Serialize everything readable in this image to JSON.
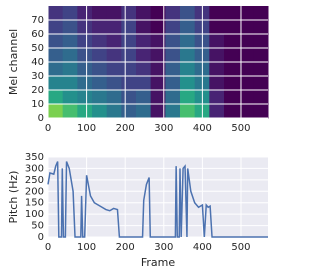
{
  "chart_data": [
    {
      "type": "heatmap",
      "ylabel": "Mel channel",
      "colormap": "viridis",
      "grid": true,
      "xlim": [
        0,
        570
      ],
      "ylim": [
        0,
        80
      ],
      "xticks": [
        0,
        100,
        200,
        300,
        400,
        500
      ],
      "yticks": [
        0,
        10,
        20,
        30,
        40,
        50,
        60,
        70
      ],
      "xbins": [
        0,
        38,
        76,
        114,
        152,
        190,
        228,
        266,
        304,
        342,
        380,
        418,
        456,
        494,
        532,
        570
      ],
      "ybins": [
        0,
        10,
        20,
        30,
        40,
        50,
        60,
        70,
        80
      ],
      "z": [
        [
          0.8,
          0.7,
          0.6,
          0.5,
          0.4,
          0.3,
          0.35,
          0.05,
          0.4,
          0.7,
          0.6,
          0.1,
          0,
          0,
          0
        ],
        [
          0.6,
          0.5,
          0.45,
          0.4,
          0.35,
          0.25,
          0.3,
          0.05,
          0.35,
          0.6,
          0.5,
          0.1,
          0,
          0,
          0
        ],
        [
          0.45,
          0.45,
          0.35,
          0.3,
          0.25,
          0.2,
          0.2,
          0.05,
          0.3,
          0.5,
          0.4,
          0.05,
          0,
          0,
          0
        ],
        [
          0.35,
          0.4,
          0.3,
          0.25,
          0.2,
          0.2,
          0.15,
          0.05,
          0.3,
          0.45,
          0.35,
          0.05,
          0,
          0,
          0
        ],
        [
          0.3,
          0.35,
          0.25,
          0.2,
          0.15,
          0.2,
          0.1,
          0.05,
          0.25,
          0.4,
          0.3,
          0.05,
          0,
          0,
          0
        ],
        [
          0.25,
          0.3,
          0.2,
          0.15,
          0.1,
          0.2,
          0.1,
          0.05,
          0.25,
          0.35,
          0.25,
          0.05,
          0,
          0,
          0
        ],
        [
          0.2,
          0.25,
          0.15,
          0.1,
          0.1,
          0.2,
          0.05,
          0,
          0.2,
          0.3,
          0.2,
          0,
          0,
          0,
          0
        ],
        [
          0.15,
          0.2,
          0.1,
          0.05,
          0.05,
          0.15,
          0.05,
          0,
          0.15,
          0.25,
          0.15,
          0,
          0,
          0,
          0
        ]
      ]
    },
    {
      "type": "line",
      "xlabel": "Frame",
      "ylabel": "Pitch (Hz)",
      "color": "#4c72b0",
      "grid": true,
      "xlim": [
        0,
        570
      ],
      "ylim": [
        0,
        350
      ],
      "xticks": [
        0,
        100,
        200,
        300,
        400,
        500
      ],
      "yticks": [
        0,
        50,
        100,
        150,
        200,
        250,
        300,
        350
      ],
      "x": [
        0,
        5,
        15,
        20,
        25,
        28,
        35,
        37,
        40,
        45,
        48,
        55,
        60,
        65,
        70,
        85,
        87,
        90,
        95,
        100,
        110,
        120,
        130,
        140,
        150,
        160,
        170,
        180,
        185,
        245,
        248,
        255,
        262,
        265,
        330,
        332,
        335,
        340,
        342,
        345,
        350,
        355,
        360,
        362,
        370,
        380,
        390,
        400,
        405,
        410,
        415,
        420,
        425,
        570
      ],
      "values": [
        230,
        280,
        275,
        310,
        330,
        0,
        0,
        300,
        0,
        0,
        330,
        300,
        250,
        200,
        0,
        0,
        180,
        0,
        0,
        270,
        180,
        150,
        140,
        130,
        120,
        115,
        125,
        120,
        0,
        0,
        160,
        230,
        260,
        0,
        0,
        310,
        0,
        0,
        300,
        0,
        300,
        310,
        0,
        300,
        200,
        150,
        130,
        140,
        0,
        140,
        130,
        135,
        0,
        0
      ]
    }
  ]
}
